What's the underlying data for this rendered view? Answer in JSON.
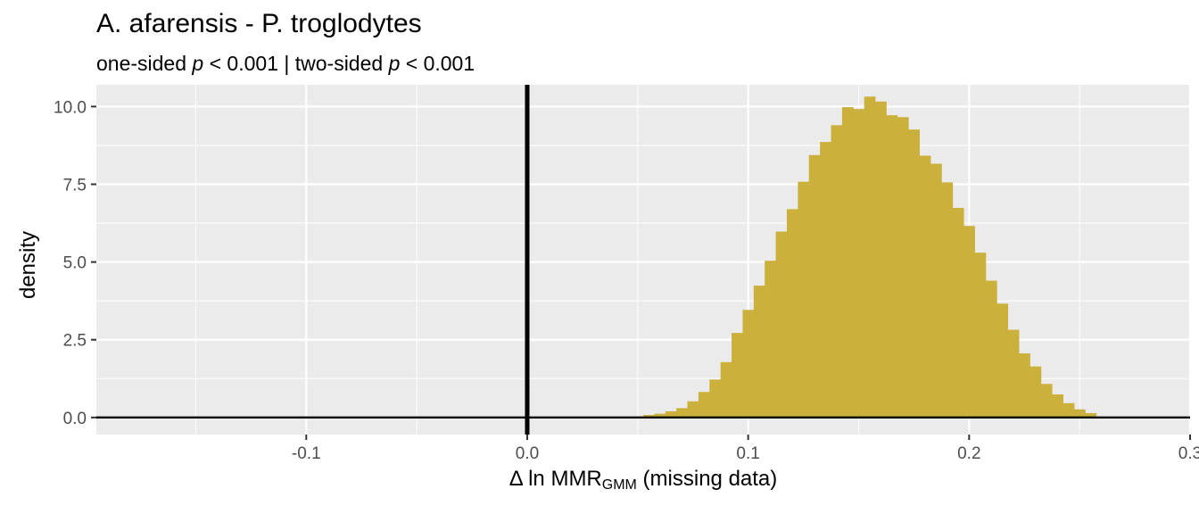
{
  "title": "A. afarensis - P. troglodytes",
  "subtitle": {
    "one_sided_label": "one-sided ",
    "p1": "p",
    "one_sided_value": " < 0.001 | two-sided ",
    "p2": "p",
    "two_sided_value": " < 0.001"
  },
  "colors": {
    "panel_bg": "#ebebeb",
    "grid": "#ffffff",
    "bar": "#cbb03c",
    "reference_line": "#000000",
    "tick_text": "#4d4d4d"
  },
  "chart_data": {
    "type": "histogram",
    "title": "A. afarensis - P. troglodytes",
    "subtitle": "one-sided p < 0.001 | two-sided p < 0.001",
    "xlabel": {
      "main": "Δ ln MMR",
      "sub": "GMM",
      "suffix": " (missing data)"
    },
    "ylabel": "density",
    "xlim": [
      -0.195,
      0.3
    ],
    "ylim": [
      -0.55,
      10.7
    ],
    "x_ticks": [
      {
        "value": -0.1,
        "label": "-0.1"
      },
      {
        "value": 0.0,
        "label": "0.0"
      },
      {
        "value": 0.1,
        "label": "0.1"
      },
      {
        "value": 0.2,
        "label": "0.2"
      },
      {
        "value": 0.3,
        "label": "0.3"
      }
    ],
    "y_ticks": [
      {
        "value": 0,
        "label": "0.0"
      },
      {
        "value": 2.5,
        "label": "2.5"
      },
      {
        "value": 5,
        "label": "5.0"
      },
      {
        "value": 7.5,
        "label": "7.5"
      },
      {
        "value": 10,
        "label": "10.0"
      }
    ],
    "grid": true,
    "vertical_reference": 0,
    "horizontal_reference": 0,
    "bin_start": 0.0525,
    "bin_width": 0.005,
    "values": [
      0.08,
      0.12,
      0.2,
      0.3,
      0.52,
      0.82,
      1.22,
      1.78,
      2.72,
      3.46,
      4.24,
      5.04,
      5.98,
      6.7,
      7.58,
      8.44,
      8.86,
      9.4,
      9.98,
      9.92,
      10.32,
      10.16,
      9.72,
      9.66,
      9.26,
      8.42,
      8.16,
      7.56,
      6.74,
      6.16,
      5.3,
      4.4,
      3.66,
      2.82,
      2.06,
      1.64,
      1.08,
      0.74,
      0.46,
      0.26,
      0.14
    ]
  }
}
